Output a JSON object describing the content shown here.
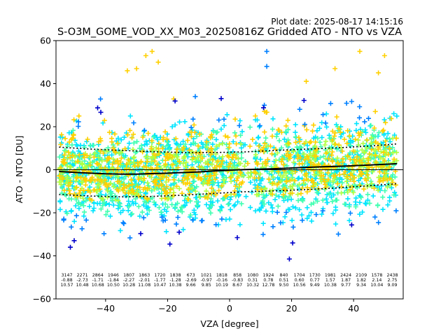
{
  "plot_date": "Plot date: 2025-08-17 14:15:16",
  "chart_data": {
    "type": "scatter",
    "title": "S-O3M_GOME_VOD_XX_M03_20250816Z Gridded ATO - NTO vs VZA",
    "xlabel": "VZA [degree]",
    "ylabel": "ATO - NTO [DU]",
    "xlim": [
      -56,
      56
    ],
    "ylim": [
      -60,
      60
    ],
    "xticks": [
      -40,
      -20,
      0,
      20,
      40
    ],
    "yticks": [
      -60,
      -40,
      -20,
      0,
      20,
      40,
      60
    ],
    "grid": false,
    "legend": "none",
    "marker": "+",
    "colors": {
      "density_low": "#0000cc",
      "density_mid_low": "#0080ff",
      "density_mid": "#00e5ff",
      "density_mid_high": "#40ffb0",
      "density_high": "#b0ff40",
      "density_max": "#ffd000",
      "mean_line": "#000000",
      "std_line": "#000000"
    },
    "vza_bins": [
      -52.5,
      -47.5,
      -42.5,
      -37.5,
      -32.5,
      -27.5,
      -22.5,
      -17.5,
      -12.5,
      -7.5,
      -2.5,
      2.5,
      7.5,
      12.5,
      17.5,
      22.5,
      27.5,
      32.5,
      37.5,
      42.5,
      47.5,
      52.5
    ],
    "mean_line": {
      "x": [
        -55,
        -50,
        -45,
        -40,
        -35,
        -30,
        -25,
        -20,
        -15,
        -10,
        -5,
        0,
        5,
        10,
        15,
        20,
        25,
        30,
        35,
        40,
        45,
        50,
        54
      ],
      "y": [
        -0.8,
        -1.2,
        -1.6,
        -1.9,
        -2.0,
        -2.0,
        -1.8,
        -1.6,
        -1.3,
        -1.0,
        -0.6,
        -0.2,
        0.1,
        0.3,
        0.5,
        0.8,
        1.1,
        1.4,
        1.6,
        1.9,
        2.2,
        2.5,
        2.8
      ]
    },
    "upper_std_line": {
      "x": [
        -55,
        -45,
        -35,
        -25,
        -15,
        -5,
        5,
        15,
        25,
        35,
        45,
        54
      ],
      "y": [
        10.5,
        9.6,
        9.0,
        8.4,
        8.0,
        8.0,
        8.3,
        9.0,
        9.6,
        10.2,
        11.0,
        12.0
      ]
    },
    "lower_std_line": {
      "x": [
        -55,
        -45,
        -35,
        -25,
        -15,
        -5,
        5,
        15,
        25,
        35,
        45,
        54
      ],
      "y": [
        -11.5,
        -12.2,
        -12.6,
        -12.4,
        -11.8,
        -11.0,
        -10.2,
        -9.8,
        -9.2,
        -8.4,
        -7.4,
        -6.5
      ]
    },
    "annotation_rows": {
      "counts": [
        "3147",
        "2271",
        "2864",
        "1946",
        "1807",
        "1863",
        "1720",
        "1838",
        "673",
        "1021",
        "1818",
        "858",
        "1080",
        "1924",
        "840",
        "1704",
        "1730",
        "1981",
        "2424",
        "2109",
        "1578",
        "2438"
      ],
      "means": [
        "-0.88",
        "-2.73",
        "-1.71",
        "-1.84",
        "-2.27",
        "-2.01",
        "-1.77",
        "-1.28",
        "-2.69",
        "-0.97",
        "-0.16",
        "-0.83",
        "0.31",
        "0.78",
        "0.51",
        "0.60",
        "0.77",
        "1.57",
        "1.87",
        "1.82",
        "2.14",
        "2.75"
      ],
      "stds": [
        "10.57",
        "10.48",
        "10.68",
        "10.50",
        "10.28",
        "11.08",
        "10.47",
        "10.38",
        "9.66",
        "9.85",
        "10.19",
        "8.67",
        "10.32",
        "12.78",
        "9.50",
        "10.56",
        "9.49",
        "10.38",
        "9.77",
        "9.34",
        "10.04",
        "9.09"
      ]
    }
  }
}
